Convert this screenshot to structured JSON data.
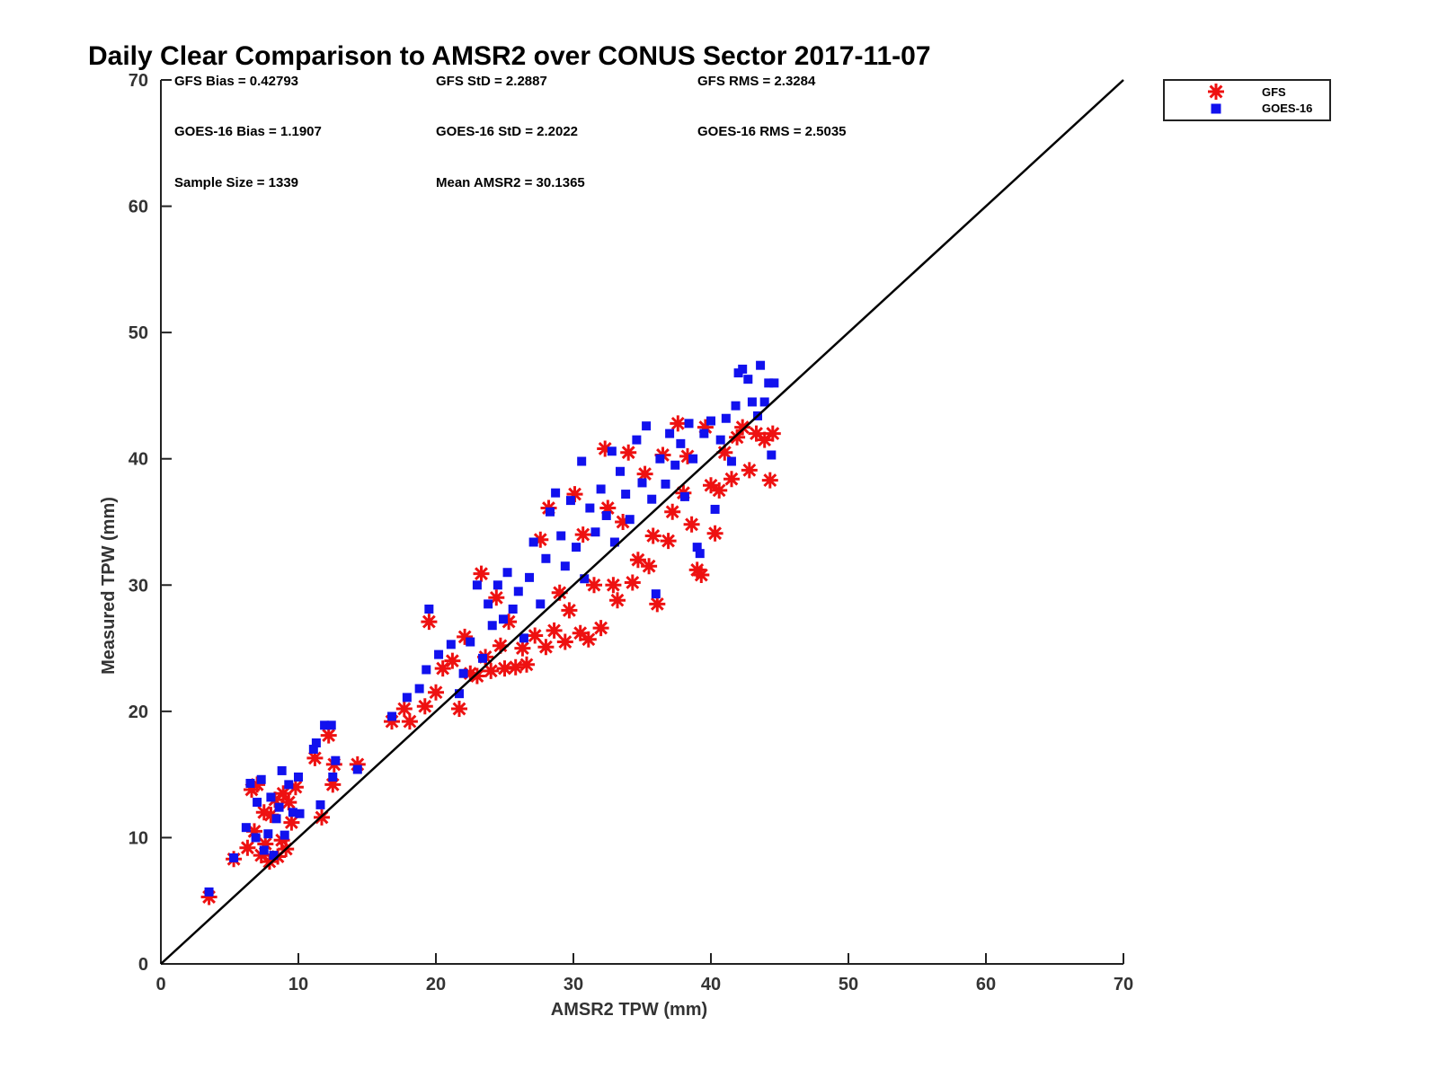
{
  "chart_data": {
    "type": "scatter",
    "title": "Daily Clear Comparison to AMSR2 over CONUS Sector 2017-11-07",
    "xlabel": "AMSR2 TPW (mm)",
    "ylabel": "Measured TPW (mm)",
    "xlim": [
      0,
      70
    ],
    "ylim": [
      0,
      70
    ],
    "xticks": [
      "0",
      "10",
      "20",
      "30",
      "40",
      "50",
      "60",
      "70"
    ],
    "yticks": [
      "0",
      "10",
      "20",
      "30",
      "40",
      "50",
      "60",
      "70"
    ],
    "grid": false,
    "legend_position": "outside-top-right",
    "reference_line": {
      "from": [
        0,
        0
      ],
      "to": [
        70,
        70
      ],
      "color": "#000000"
    },
    "stats": {
      "gfs_bias": "GFS Bias = 0.42793",
      "gfs_std": "GFS StD = 2.2887",
      "gfs_rms": "GFS RMS = 2.3284",
      "goes_bias": "GOES-16 Bias = 1.1907",
      "goes_std": "GOES-16 StD = 2.2022",
      "goes_rms": "GOES-16 RMS = 2.5035",
      "sample_size": "Sample Size = 1339",
      "mean_amsr2": "Mean AMSR2 = 30.1365"
    },
    "series": [
      {
        "name": "GFS",
        "marker": "asterisk",
        "color": "#ee1111",
        "points": [
          [
            3.5,
            5.3
          ],
          [
            5.3,
            8.3
          ],
          [
            6.3,
            9.2
          ],
          [
            6.6,
            13.8
          ],
          [
            6.8,
            10.5
          ],
          [
            7.0,
            14.2
          ],
          [
            7.3,
            8.6
          ],
          [
            7.5,
            12.0
          ],
          [
            7.6,
            9.5
          ],
          [
            7.9,
            8.1
          ],
          [
            8.0,
            11.8
          ],
          [
            8.3,
            13.0
          ],
          [
            8.5,
            8.5
          ],
          [
            8.8,
            9.8
          ],
          [
            8.9,
            13.5
          ],
          [
            9.1,
            9.1
          ],
          [
            9.3,
            12.8
          ],
          [
            9.5,
            11.2
          ],
          [
            9.8,
            14.0
          ],
          [
            11.2,
            16.3
          ],
          [
            11.7,
            11.6
          ],
          [
            12.2,
            18.1
          ],
          [
            12.5,
            14.2
          ],
          [
            12.6,
            15.8
          ],
          [
            14.3,
            15.8
          ],
          [
            16.8,
            19.2
          ],
          [
            17.7,
            20.2
          ],
          [
            18.1,
            19.2
          ],
          [
            19.2,
            20.4
          ],
          [
            19.5,
            27.1
          ],
          [
            20.0,
            21.5
          ],
          [
            20.5,
            23.4
          ],
          [
            21.2,
            24.0
          ],
          [
            21.7,
            20.2
          ],
          [
            22.1,
            25.9
          ],
          [
            22.5,
            23.0
          ],
          [
            23.0,
            22.8
          ],
          [
            23.3,
            30.9
          ],
          [
            23.6,
            24.3
          ],
          [
            24.0,
            23.2
          ],
          [
            24.4,
            29.0
          ],
          [
            24.7,
            25.2
          ],
          [
            25.0,
            23.4
          ],
          [
            25.3,
            27.1
          ],
          [
            25.8,
            23.5
          ],
          [
            26.3,
            25.0
          ],
          [
            26.6,
            23.7
          ],
          [
            27.2,
            26.0
          ],
          [
            27.6,
            33.6
          ],
          [
            28.0,
            25.1
          ],
          [
            28.2,
            36.1
          ],
          [
            28.6,
            26.4
          ],
          [
            29.0,
            29.4
          ],
          [
            29.4,
            25.5
          ],
          [
            29.7,
            28.0
          ],
          [
            30.1,
            37.2
          ],
          [
            30.5,
            26.2
          ],
          [
            30.7,
            34.0
          ],
          [
            31.1,
            25.7
          ],
          [
            31.5,
            30.0
          ],
          [
            32.0,
            26.6
          ],
          [
            32.3,
            40.8
          ],
          [
            32.5,
            36.1
          ],
          [
            32.9,
            30.0
          ],
          [
            33.2,
            28.8
          ],
          [
            33.6,
            35.0
          ],
          [
            34.0,
            40.5
          ],
          [
            34.3,
            30.2
          ],
          [
            34.7,
            32.0
          ],
          [
            35.2,
            38.8
          ],
          [
            35.5,
            31.5
          ],
          [
            35.8,
            33.9
          ],
          [
            36.1,
            28.5
          ],
          [
            36.5,
            40.3
          ],
          [
            36.9,
            33.5
          ],
          [
            37.2,
            35.8
          ],
          [
            37.6,
            42.8
          ],
          [
            38.0,
            37.3
          ],
          [
            38.3,
            40.2
          ],
          [
            38.6,
            34.8
          ],
          [
            39.0,
            31.2
          ],
          [
            39.3,
            30.8
          ],
          [
            39.6,
            42.5
          ],
          [
            40.0,
            37.9
          ],
          [
            40.3,
            34.1
          ],
          [
            40.6,
            37.5
          ],
          [
            41.0,
            40.5
          ],
          [
            41.5,
            38.4
          ],
          [
            41.9,
            41.7
          ],
          [
            42.3,
            42.5
          ],
          [
            42.8,
            39.1
          ],
          [
            43.3,
            42.0
          ],
          [
            43.9,
            41.5
          ],
          [
            44.3,
            38.3
          ],
          [
            44.5,
            42.0
          ]
        ]
      },
      {
        "name": "GOES-16",
        "marker": "square",
        "color": "#1111ee",
        "points": [
          [
            3.5,
            5.7
          ],
          [
            5.3,
            8.4
          ],
          [
            6.2,
            10.8
          ],
          [
            6.5,
            14.3
          ],
          [
            6.9,
            10.0
          ],
          [
            7.0,
            12.8
          ],
          [
            7.3,
            14.6
          ],
          [
            7.5,
            9.0
          ],
          [
            7.8,
            10.3
          ],
          [
            8.0,
            13.2
          ],
          [
            8.2,
            8.6
          ],
          [
            8.4,
            11.5
          ],
          [
            8.6,
            12.4
          ],
          [
            8.8,
            15.3
          ],
          [
            9.0,
            10.2
          ],
          [
            9.3,
            14.2
          ],
          [
            9.6,
            12.0
          ],
          [
            10.0,
            14.8
          ],
          [
            10.1,
            11.9
          ],
          [
            11.1,
            17.0
          ],
          [
            11.3,
            17.5
          ],
          [
            11.6,
            12.6
          ],
          [
            11.9,
            18.9
          ],
          [
            12.4,
            18.9
          ],
          [
            12.5,
            14.8
          ],
          [
            12.7,
            16.1
          ],
          [
            14.3,
            15.4
          ],
          [
            16.8,
            19.6
          ],
          [
            17.9,
            21.1
          ],
          [
            18.8,
            21.8
          ],
          [
            19.3,
            23.3
          ],
          [
            19.5,
            28.1
          ],
          [
            20.2,
            24.5
          ],
          [
            21.1,
            25.3
          ],
          [
            21.7,
            21.4
          ],
          [
            22.0,
            23.0
          ],
          [
            22.5,
            25.5
          ],
          [
            23.0,
            30.0
          ],
          [
            23.4,
            24.2
          ],
          [
            23.8,
            28.5
          ],
          [
            24.1,
            26.8
          ],
          [
            24.5,
            30.0
          ],
          [
            24.9,
            27.3
          ],
          [
            25.2,
            31.0
          ],
          [
            25.6,
            28.1
          ],
          [
            26.0,
            29.5
          ],
          [
            26.4,
            25.8
          ],
          [
            26.8,
            30.6
          ],
          [
            27.1,
            33.4
          ],
          [
            27.6,
            28.5
          ],
          [
            28.0,
            32.1
          ],
          [
            28.3,
            35.8
          ],
          [
            28.7,
            37.3
          ],
          [
            29.1,
            33.9
          ],
          [
            29.4,
            31.5
          ],
          [
            29.8,
            36.7
          ],
          [
            30.2,
            33.0
          ],
          [
            30.6,
            39.8
          ],
          [
            30.8,
            30.5
          ],
          [
            31.2,
            36.1
          ],
          [
            31.6,
            34.2
          ],
          [
            32.0,
            37.6
          ],
          [
            32.4,
            35.5
          ],
          [
            32.8,
            40.6
          ],
          [
            33.0,
            33.4
          ],
          [
            33.4,
            39.0
          ],
          [
            33.8,
            37.2
          ],
          [
            34.1,
            35.2
          ],
          [
            34.6,
            41.5
          ],
          [
            35.0,
            38.1
          ],
          [
            35.3,
            42.6
          ],
          [
            35.7,
            36.8
          ],
          [
            36.0,
            29.3
          ],
          [
            36.3,
            40.0
          ],
          [
            36.7,
            38.0
          ],
          [
            37.0,
            42.0
          ],
          [
            37.4,
            39.5
          ],
          [
            37.8,
            41.2
          ],
          [
            38.1,
            37.0
          ],
          [
            38.4,
            42.8
          ],
          [
            38.7,
            40.0
          ],
          [
            39.0,
            33.0
          ],
          [
            39.2,
            32.5
          ],
          [
            39.5,
            42.0
          ],
          [
            40.0,
            43.0
          ],
          [
            40.3,
            36.0
          ],
          [
            40.7,
            41.5
          ],
          [
            41.1,
            43.2
          ],
          [
            41.5,
            39.8
          ],
          [
            41.8,
            44.2
          ],
          [
            42.0,
            46.8
          ],
          [
            42.3,
            47.1
          ],
          [
            42.7,
            46.3
          ],
          [
            43.0,
            44.5
          ],
          [
            43.4,
            43.4
          ],
          [
            43.6,
            47.4
          ],
          [
            43.9,
            44.5
          ],
          [
            44.2,
            46.0
          ],
          [
            44.4,
            40.3
          ],
          [
            44.6,
            46.0
          ]
        ]
      }
    ]
  }
}
